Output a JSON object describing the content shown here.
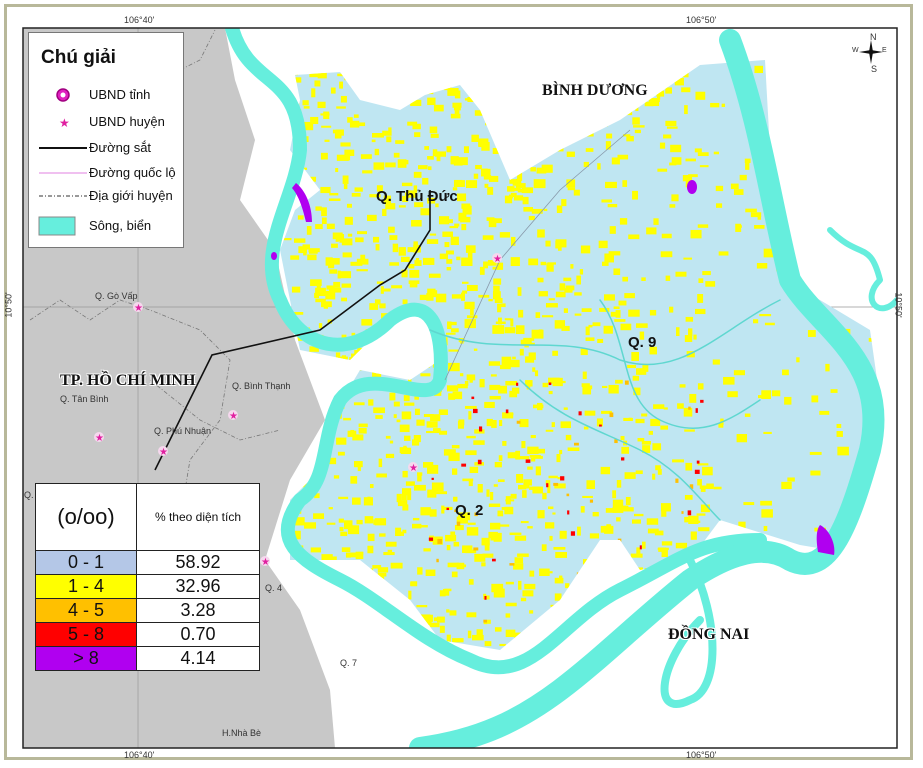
{
  "coordinates": {
    "lon_left": "106°40'",
    "lon_right": "106°50'",
    "lat": "10°50'"
  },
  "compass": {
    "n": "N",
    "s": "S",
    "e": "E",
    "w": "W"
  },
  "legend": {
    "title": "Chú giải",
    "items": [
      {
        "label": "UBND tỉnh",
        "icon": "province-office-icon"
      },
      {
        "label": "UBND huyện",
        "icon": "district-office-star-icon"
      },
      {
        "label": "Đường sắt",
        "icon": "railway-line-icon"
      },
      {
        "label": "Đường quốc lộ",
        "icon": "national-road-line-icon"
      },
      {
        "label": "Địa giới huyện",
        "icon": "district-boundary-line-icon"
      },
      {
        "label": "Sông, biển",
        "icon": "river-sea-swatch-icon"
      }
    ]
  },
  "class_table": {
    "header_unit": "(o/oo)",
    "header_value": "%  theo diện tích",
    "rows": [
      {
        "range": "0 - 1",
        "percent": "58.92",
        "color": "#b4c7e7"
      },
      {
        "range": "1 - 4",
        "percent": "32.96",
        "color": "#ffff00"
      },
      {
        "range": "4 - 5",
        "percent": "3.28",
        "color": "#ffc000"
      },
      {
        "range": "5 - 8",
        "percent": "0.70",
        "color": "#ff0000"
      },
      {
        "range": "> 8",
        "percent": "4.14",
        "color": "#b000f0"
      }
    ]
  },
  "places": {
    "binh_duong": "BÌNH DƯƠNG",
    "dong_nai": "ĐỒNG NAI",
    "hcm": "TP. HỒ CHÍ MINH",
    "thu_duc": "Q. Thủ Đức",
    "q9": "Q. 9",
    "q2": "Q. 2",
    "go_vap": "Q. Gò Vấp",
    "tan_binh": "Q. Tân Bình",
    "binh_thanh": "Q. Bình Thạnh",
    "phu_nhuan": "Q. Phú Nhuận",
    "q4": "Q. 4",
    "q7": "Q. 7",
    "q_cut": "Q.",
    "nha_be": "H.Nhà Bè"
  },
  "colors": {
    "river": "#66eedd",
    "outside_land": "#c8c8c8",
    "low_class": "#bfe6f2",
    "mid_class": "#ffff00",
    "star": "#e020a0"
  }
}
